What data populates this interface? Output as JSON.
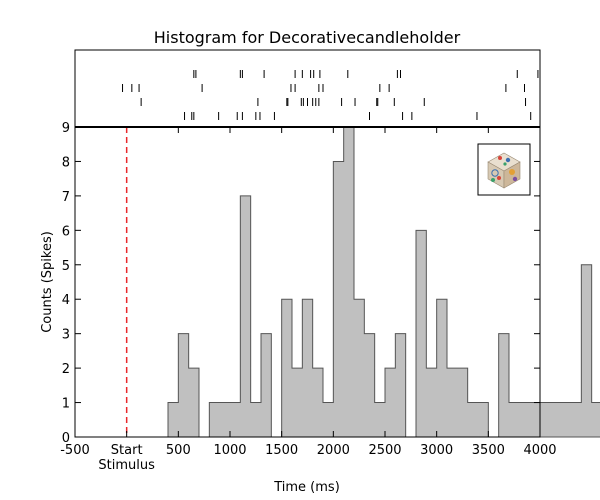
{
  "chart_data": {
    "type": "bar",
    "title": "Histogram for Decorativecandleholder",
    "xlabel": "Time (ms)",
    "ylabel": "Counts (Spikes)",
    "xlim": [
      -500,
      4000
    ],
    "ylim": [
      0,
      9
    ],
    "bin_width": 100,
    "bin_edges_start": 0,
    "counts": [
      0,
      0,
      0,
      0,
      1,
      3,
      2,
      0,
      1,
      1,
      1,
      7,
      1,
      3,
      0,
      4,
      2,
      4,
      2,
      1,
      8,
      9,
      4,
      3,
      1,
      2,
      3,
      0,
      6,
      2,
      4,
      2,
      2,
      1,
      1,
      0,
      3,
      1,
      1,
      1,
      1,
      1,
      1,
      1,
      5,
      1
    ],
    "x_ticks": [
      -500,
      500,
      1000,
      1500,
      2000,
      2500,
      3000,
      3500,
      4000
    ],
    "x_tick_labels": [
      "-500",
      "500",
      "1000",
      "1500",
      "2000",
      "2500",
      "3000",
      "3500",
      "4000"
    ],
    "start_tick": {
      "value": 0,
      "label": "Start",
      "sublabel": "Stimulus"
    },
    "y_ticks": [
      0,
      1,
      2,
      3,
      4,
      5,
      6,
      7,
      8,
      9
    ],
    "y_tick_labels": [
      "0",
      "1",
      "2",
      "3",
      "4",
      "5",
      "6",
      "7",
      "8",
      "9"
    ],
    "stimulus_line": {
      "x": 0,
      "color": "#e8262a",
      "style": "dashed"
    },
    "bar_color": "#c0c0c0",
    "bar_edge_color": "#555555",
    "raster": {
      "trials": [
        [
          650,
          670,
          1100,
          1120,
          1330,
          1630,
          1700,
          1780,
          1810,
          1870,
          2140,
          2620,
          2650,
          3780,
          3980
        ],
        [
          -40,
          50,
          120,
          730,
          1590,
          1630,
          1860,
          1900,
          2450,
          2540,
          3670,
          3850
        ],
        [
          140,
          1270,
          1550,
          1560,
          1690,
          1710,
          1750,
          1800,
          1830,
          1860,
          2080,
          2210,
          2420,
          2430,
          2590,
          2880,
          3860
        ],
        [
          560,
          630,
          650,
          890,
          1070,
          1120,
          1250,
          1290,
          1430,
          2350,
          2670,
          2760,
          3390,
          3910
        ]
      ]
    },
    "inset_image": {
      "name": "decorative-candleholder-thumbnail"
    }
  }
}
